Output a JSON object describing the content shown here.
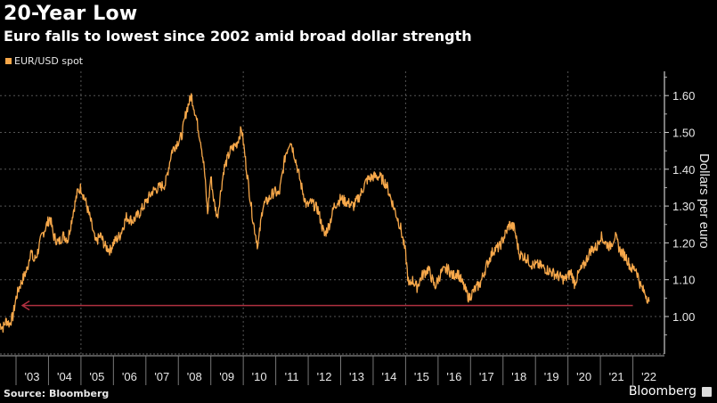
{
  "header": {
    "title": "20-Year Low",
    "subtitle": "Euro falls to lowest since 2002 amid broad dollar strength"
  },
  "footer": {
    "source": "Source: Bloomberg",
    "brand": "Bloomberg"
  },
  "chart_data": {
    "type": "line",
    "title": "20-Year Low",
    "subtitle": "Euro falls to lowest since 2002 amid broad dollar strength",
    "xlabel": "",
    "ylabel": "Dollars per euro",
    "ylim": [
      0.9,
      1.66
    ],
    "xlim": [
      2002.5,
      2022.6
    ],
    "yticks": [
      1.0,
      1.1,
      1.2,
      1.3,
      1.4,
      1.5,
      1.6
    ],
    "ytick_labels": [
      "1.00",
      "1.10",
      "1.20",
      "1.30",
      "1.40",
      "1.50",
      "1.60"
    ],
    "xtick_labels": [
      "'03",
      "'04",
      "'05",
      "'06",
      "'07",
      "'08",
      "'09",
      "'10",
      "'11",
      "'12",
      "'13",
      "'14",
      "'15",
      "'16",
      "'17",
      "'18",
      "'19",
      "'20",
      "'21",
      "'22"
    ],
    "x_years": [
      2003,
      2004,
      2005,
      2006,
      2007,
      2008,
      2009,
      2010,
      2011,
      2012,
      2013,
      2014,
      2015,
      2016,
      2017,
      2018,
      2019,
      2020,
      2021,
      2022
    ],
    "grid": {
      "horizontal": true,
      "vertical_years": [
        2005,
        2010,
        2015,
        2020
      ]
    },
    "legend": {
      "position": "top-left",
      "entries": [
        "EUR/USD spot"
      ]
    },
    "series": [
      {
        "name": "EUR/USD spot",
        "color": "#f7a84a",
        "x": [
          2002.5,
          2002.6,
          2002.7,
          2002.8,
          2002.9,
          2003.0,
          2003.1,
          2003.2,
          2003.35,
          2003.45,
          2003.55,
          2003.65,
          2003.8,
          2003.95,
          2004.05,
          2004.15,
          2004.3,
          2004.45,
          2004.6,
          2004.75,
          2004.9,
          2005.0,
          2005.15,
          2005.3,
          2005.45,
          2005.6,
          2005.75,
          2005.9,
          2006.0,
          2006.2,
          2006.4,
          2006.6,
          2006.8,
          2007.0,
          2007.2,
          2007.4,
          2007.6,
          2007.8,
          2007.95,
          2008.1,
          2008.25,
          2008.4,
          2008.55,
          2008.7,
          2008.8,
          2008.9,
          2009.0,
          2009.1,
          2009.2,
          2009.4,
          2009.6,
          2009.8,
          2009.95,
          2010.1,
          2010.3,
          2010.45,
          2010.6,
          2010.8,
          2010.95,
          2011.1,
          2011.3,
          2011.45,
          2011.6,
          2011.8,
          2011.95,
          2012.1,
          2012.3,
          2012.5,
          2012.65,
          2012.8,
          2013.0,
          2013.2,
          2013.4,
          2013.6,
          2013.8,
          2014.0,
          2014.2,
          2014.4,
          2014.55,
          2014.7,
          2014.85,
          2015.0,
          2015.1,
          2015.2,
          2015.35,
          2015.5,
          2015.7,
          2015.9,
          2016.1,
          2016.3,
          2016.45,
          2016.6,
          2016.8,
          2016.95,
          2017.1,
          2017.3,
          2017.5,
          2017.7,
          2017.9,
          2018.1,
          2018.2,
          2018.35,
          2018.5,
          2018.7,
          2018.9,
          2019.1,
          2019.3,
          2019.5,
          2019.7,
          2019.9,
          2020.1,
          2020.2,
          2020.35,
          2020.5,
          2020.7,
          2020.9,
          2021.0,
          2021.15,
          2021.3,
          2021.45,
          2021.6,
          2021.8,
          2021.95,
          2022.1,
          2022.25,
          2022.4,
          2022.5
        ],
        "y": [
          0.98,
          0.97,
          0.99,
          0.98,
          1.0,
          1.05,
          1.08,
          1.1,
          1.13,
          1.18,
          1.15,
          1.17,
          1.22,
          1.25,
          1.27,
          1.22,
          1.2,
          1.22,
          1.21,
          1.28,
          1.34,
          1.35,
          1.31,
          1.26,
          1.2,
          1.22,
          1.19,
          1.18,
          1.2,
          1.22,
          1.27,
          1.26,
          1.28,
          1.31,
          1.34,
          1.35,
          1.36,
          1.45,
          1.47,
          1.49,
          1.56,
          1.6,
          1.54,
          1.47,
          1.4,
          1.28,
          1.38,
          1.31,
          1.27,
          1.4,
          1.45,
          1.47,
          1.51,
          1.4,
          1.26,
          1.19,
          1.3,
          1.32,
          1.34,
          1.33,
          1.44,
          1.48,
          1.43,
          1.35,
          1.3,
          1.31,
          1.29,
          1.22,
          1.25,
          1.3,
          1.32,
          1.31,
          1.3,
          1.33,
          1.37,
          1.38,
          1.38,
          1.36,
          1.32,
          1.28,
          1.24,
          1.17,
          1.08,
          1.1,
          1.08,
          1.11,
          1.13,
          1.08,
          1.12,
          1.13,
          1.11,
          1.12,
          1.08,
          1.05,
          1.07,
          1.09,
          1.14,
          1.18,
          1.19,
          1.23,
          1.25,
          1.24,
          1.17,
          1.16,
          1.14,
          1.14,
          1.13,
          1.12,
          1.11,
          1.1,
          1.12,
          1.09,
          1.12,
          1.14,
          1.18,
          1.19,
          1.22,
          1.2,
          1.19,
          1.22,
          1.18,
          1.16,
          1.13,
          1.13,
          1.08,
          1.06,
          1.04
        ]
      }
    ],
    "annotations": [
      {
        "type": "arrow",
        "direction": "left",
        "y": 1.03,
        "x_from": 2022.0,
        "x_to": 2002.7,
        "color": "#b03040"
      }
    ]
  }
}
